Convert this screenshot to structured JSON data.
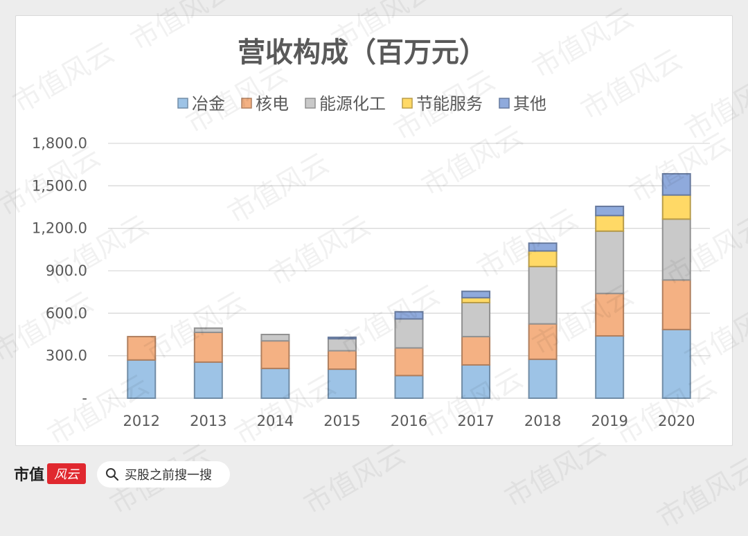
{
  "chart_data": {
    "type": "bar",
    "stacked": true,
    "title": "营收构成（百万元）",
    "categories": [
      "2012",
      "2013",
      "2014",
      "2015",
      "2016",
      "2017",
      "2018",
      "2019",
      "2020"
    ],
    "series": [
      {
        "name": "冶金",
        "color": "#9dc3e6",
        "values": [
          270,
          255,
          210,
          205,
          160,
          235,
          275,
          440,
          485
        ]
      },
      {
        "name": "核电",
        "color": "#f4b183",
        "values": [
          165,
          210,
          195,
          130,
          195,
          200,
          250,
          300,
          350
        ]
      },
      {
        "name": "能源化工",
        "color": "#c9c9c9",
        "values": [
          0,
          30,
          45,
          85,
          205,
          240,
          405,
          440,
          430
        ]
      },
      {
        "name": "节能服务",
        "color": "#ffd966",
        "values": [
          0,
          0,
          0,
          0,
          0,
          35,
          110,
          110,
          170
        ]
      },
      {
        "name": "其他",
        "color": "#8faadc",
        "values": [
          0,
          0,
          0,
          10,
          50,
          45,
          55,
          65,
          150
        ]
      }
    ],
    "ylim": [
      0,
      1800
    ],
    "yticks": [
      0,
      300,
      600,
      900,
      1200,
      1500,
      1800
    ],
    "ytick_labels": [
      "-",
      "300.0",
      "600.0",
      "900.0",
      "1,200.0",
      "1,500.0",
      "1,800.0"
    ],
    "grid": true,
    "legend_position": "top"
  },
  "footer": {
    "brand": "市值",
    "logo": "风云",
    "search_placeholder": "买股之前搜一搜"
  },
  "watermark": "市值风云",
  "colors": {
    "background": "#ededed",
    "panel": "#ffffff",
    "brand_red": "#e0282f"
  }
}
